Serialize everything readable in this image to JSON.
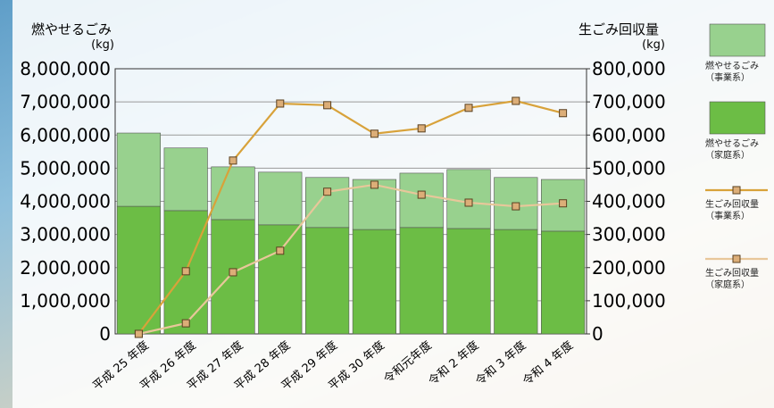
{
  "chart_data": {
    "type": "bar",
    "y_label": "燃やせるごみ",
    "y_unit": "(kg)",
    "y2_label": "生ごみ回収量",
    "y2_unit": "(kg)",
    "categories": [
      "平成 25 年度",
      "平成 26 年度",
      "平成 27 年度",
      "平成 28 年度",
      "平成 29 年度",
      "平成 30 年度",
      "令和元年度",
      "令和 2 年度",
      "令和 3 年度",
      "令和 4 年度"
    ],
    "series": [
      {
        "name": "燃やせるごみ（事業系）",
        "type": "bar",
        "color": "#98d18e",
        "values": [
          2210000,
          1890000,
          1590000,
          1590000,
          1510000,
          1510000,
          1640000,
          1780000,
          1570000,
          1560000
        ]
      },
      {
        "name": "燃やせるごみ（家庭系）",
        "type": "bar",
        "color": "#6cbd45",
        "values": [
          3850000,
          3720000,
          3450000,
          3290000,
          3210000,
          3150000,
          3210000,
          3180000,
          3150000,
          3100000
        ]
      },
      {
        "name": "生ごみ回収量（事業系）",
        "type": "line",
        "axis": "y2",
        "color": "#d8a23a",
        "values": [
          0,
          189000,
          523000,
          695000,
          690000,
          604000,
          620000,
          682000,
          703000,
          666000
        ]
      },
      {
        "name": "生ごみ回収量（家庭系）",
        "type": "line",
        "axis": "y2",
        "color": "#e8c79a",
        "values": [
          0,
          32000,
          186000,
          251000,
          429000,
          450000,
          420000,
          396000,
          385000,
          394000
        ]
      }
    ],
    "ylim": [
      0,
      8000000
    ],
    "yticks": [
      0,
      {
        "value": 1000000,
        "label": "1,000,000"
      },
      {
        "value": 2000000,
        "label": "2,000,000"
      },
      {
        "value": 3000000,
        "label": "3,000,000"
      },
      {
        "value": 4000000,
        "label": "4,000,000"
      },
      {
        "value": 5000000,
        "label": "5,000,000"
      },
      {
        "value": 6000000,
        "label": "6,000,000"
      },
      {
        "value": 7000000,
        "label": "7,000,000"
      },
      {
        "value": 8000000,
        "label": "8,000,000"
      }
    ],
    "y2lim": [
      0,
      800000
    ],
    "y2ticks": [
      0,
      {
        "value": 100000,
        "label": "100,000"
      },
      {
        "value": 200000,
        "label": "200,000"
      },
      {
        "value": 300000,
        "label": "300,000"
      },
      {
        "value": 400000,
        "label": "400,000"
      },
      {
        "value": 500000,
        "label": "500,000"
      },
      {
        "value": 600000,
        "label": "600,000"
      },
      {
        "value": 700000,
        "label": "700,000"
      },
      {
        "value": 800000,
        "label": "800,000"
      }
    ],
    "grid": true
  }
}
